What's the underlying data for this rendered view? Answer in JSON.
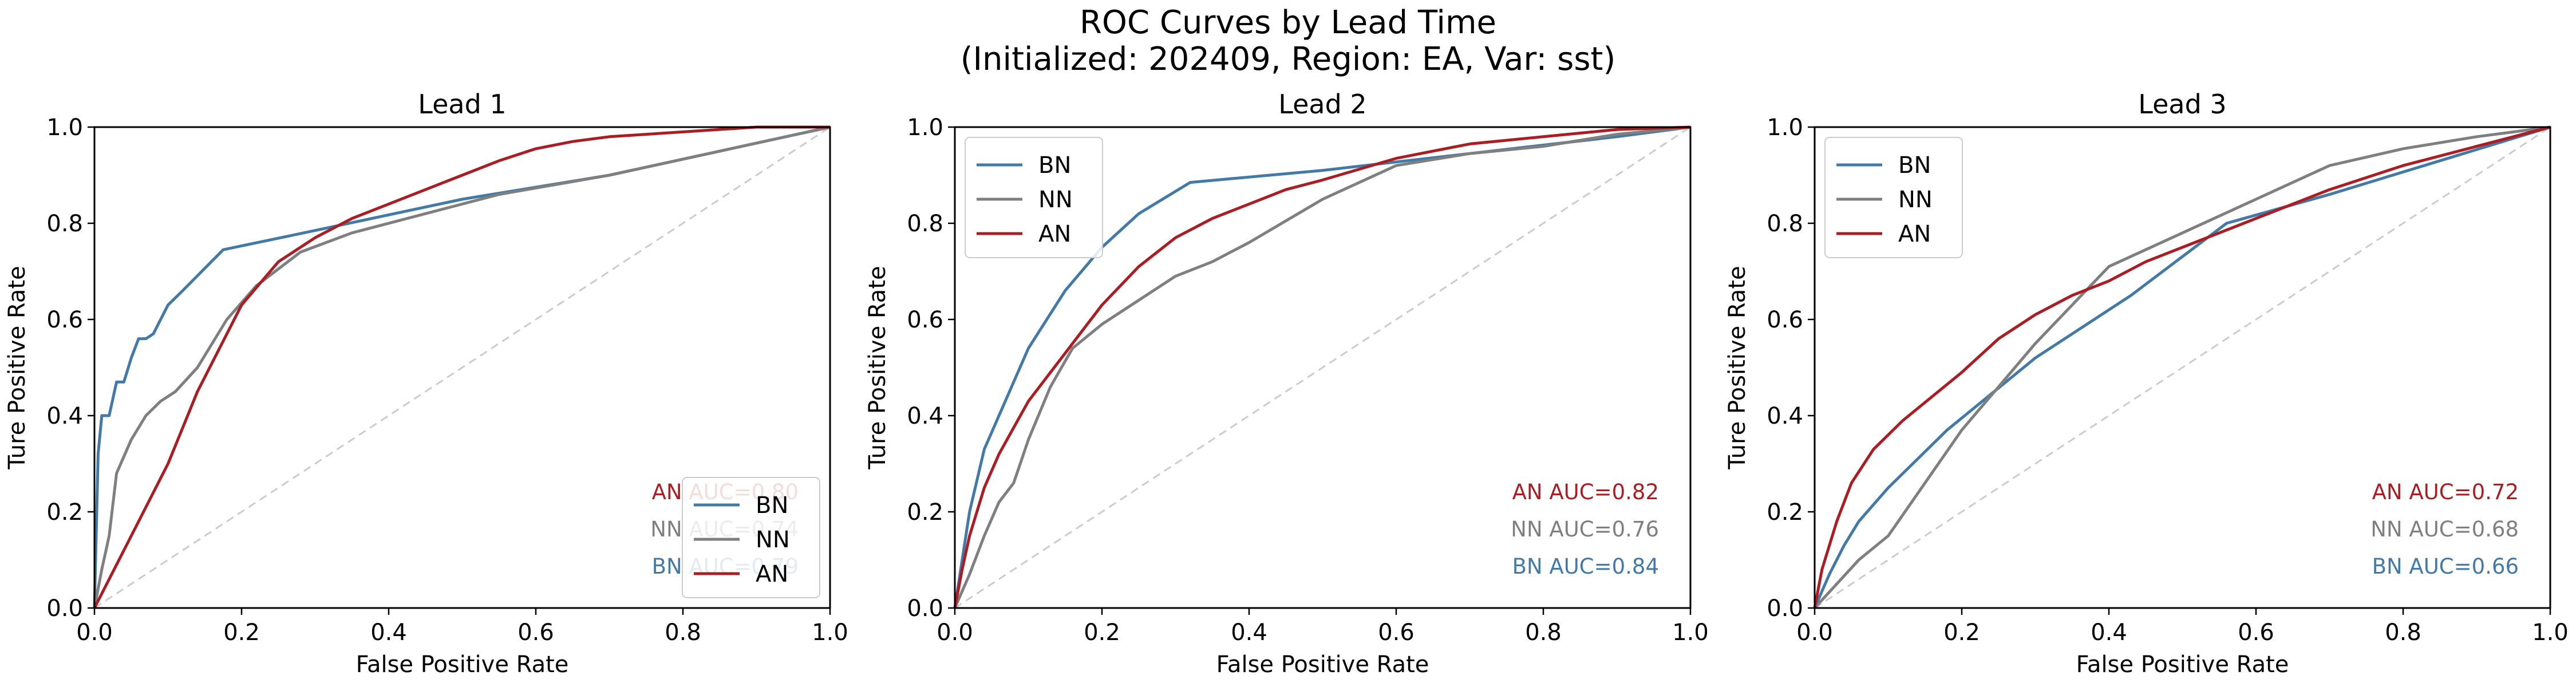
{
  "title_line1": "ROC Curves by Lead Time",
  "title_line2": "(Initialized: 202409, Region: EA, Var: sst)",
  "colors": {
    "BN": "#4279a7",
    "NN": "#7f7f7f",
    "AN": "#aa1e23",
    "diagonal": "#cccccc"
  },
  "chart_data": [
    {
      "type": "line",
      "title": "Lead 1",
      "xlabel": "False Positive Rate",
      "ylabel": "Ture Positive Rate",
      "xlim": [
        0,
        1
      ],
      "ylim": [
        0,
        1
      ],
      "xticks": [
        "0.0",
        "0.2",
        "0.4",
        "0.6",
        "0.8",
        "1.0"
      ],
      "yticks": [
        "0.0",
        "0.2",
        "0.4",
        "0.6",
        "0.8",
        "1.0"
      ],
      "legend": {
        "position": "lower-right",
        "entries": [
          "BN",
          "NN",
          "AN"
        ]
      },
      "annotations": [
        {
          "series": "AN",
          "text": "AN AUC=0.80"
        },
        {
          "series": "NN",
          "text": "NN AUC=0.74"
        },
        {
          "series": "BN",
          "text": "BN AUC=0.79"
        }
      ],
      "series": [
        {
          "name": "BN",
          "x": [
            0,
            0.005,
            0.01,
            0.02,
            0.03,
            0.04,
            0.05,
            0.06,
            0.07,
            0.08,
            0.1,
            0.12,
            0.175,
            0.3,
            0.5,
            0.7,
            1.0
          ],
          "y": [
            0,
            0.32,
            0.4,
            0.4,
            0.47,
            0.47,
            0.52,
            0.56,
            0.56,
            0.57,
            0.63,
            0.66,
            0.745,
            0.785,
            0.85,
            0.9,
            1.0
          ]
        },
        {
          "name": "NN",
          "x": [
            0,
            0.01,
            0.02,
            0.03,
            0.05,
            0.07,
            0.09,
            0.11,
            0.14,
            0.18,
            0.22,
            0.28,
            0.35,
            0.45,
            0.55,
            0.7,
            0.85,
            1.0
          ],
          "y": [
            0,
            0.08,
            0.15,
            0.28,
            0.35,
            0.4,
            0.43,
            0.45,
            0.5,
            0.6,
            0.67,
            0.74,
            0.78,
            0.82,
            0.86,
            0.9,
            0.95,
            1.0
          ]
        },
        {
          "name": "AN",
          "x": [
            0,
            0.05,
            0.1,
            0.14,
            0.2,
            0.25,
            0.3,
            0.35,
            0.4,
            0.45,
            0.5,
            0.55,
            0.6,
            0.65,
            0.7,
            0.8,
            0.9,
            1.0
          ],
          "y": [
            0,
            0.15,
            0.3,
            0.45,
            0.63,
            0.72,
            0.77,
            0.81,
            0.84,
            0.87,
            0.9,
            0.93,
            0.955,
            0.97,
            0.98,
            0.99,
            1.0,
            1.0
          ]
        }
      ]
    },
    {
      "type": "line",
      "title": "Lead 2",
      "xlabel": "False Positive Rate",
      "ylabel": "Ture Positive Rate",
      "xlim": [
        0,
        1
      ],
      "ylim": [
        0,
        1
      ],
      "xticks": [
        "0.0",
        "0.2",
        "0.4",
        "0.6",
        "0.8",
        "1.0"
      ],
      "yticks": [
        "0.0",
        "0.2",
        "0.4",
        "0.6",
        "0.8",
        "1.0"
      ],
      "legend": {
        "position": "upper-left",
        "entries": [
          "BN",
          "NN",
          "AN"
        ]
      },
      "annotations": [
        {
          "series": "AN",
          "text": "AN AUC=0.82"
        },
        {
          "series": "NN",
          "text": "NN AUC=0.76"
        },
        {
          "series": "BN",
          "text": "BN AUC=0.84"
        }
      ],
      "series": [
        {
          "name": "BN",
          "x": [
            0,
            0.01,
            0.02,
            0.04,
            0.06,
            0.1,
            0.15,
            0.2,
            0.25,
            0.32,
            0.5,
            0.7,
            0.9,
            1.0
          ],
          "y": [
            0,
            0.1,
            0.2,
            0.33,
            0.4,
            0.54,
            0.66,
            0.75,
            0.82,
            0.885,
            0.91,
            0.945,
            0.98,
            1.0
          ]
        },
        {
          "name": "NN",
          "x": [
            0,
            0.02,
            0.04,
            0.06,
            0.08,
            0.1,
            0.13,
            0.16,
            0.2,
            0.25,
            0.3,
            0.35,
            0.4,
            0.5,
            0.6,
            0.7,
            0.8,
            0.9,
            1.0
          ],
          "y": [
            0,
            0.07,
            0.15,
            0.22,
            0.26,
            0.35,
            0.46,
            0.54,
            0.59,
            0.64,
            0.69,
            0.72,
            0.76,
            0.85,
            0.92,
            0.945,
            0.96,
            0.985,
            1.0
          ]
        },
        {
          "name": "AN",
          "x": [
            0,
            0.01,
            0.02,
            0.04,
            0.06,
            0.1,
            0.15,
            0.2,
            0.25,
            0.3,
            0.35,
            0.4,
            0.45,
            0.5,
            0.6,
            0.7,
            0.8,
            0.9,
            1.0
          ],
          "y": [
            0,
            0.08,
            0.15,
            0.25,
            0.32,
            0.43,
            0.53,
            0.63,
            0.71,
            0.77,
            0.81,
            0.84,
            0.87,
            0.89,
            0.935,
            0.965,
            0.98,
            0.995,
            1.0
          ]
        }
      ]
    },
    {
      "type": "line",
      "title": "Lead 3",
      "xlabel": "False Positive Rate",
      "ylabel": "Ture Positive Rate",
      "xlim": [
        0,
        1
      ],
      "ylim": [
        0,
        1
      ],
      "xticks": [
        "0.0",
        "0.2",
        "0.4",
        "0.6",
        "0.8",
        "1.0"
      ],
      "yticks": [
        "0.0",
        "0.2",
        "0.4",
        "0.6",
        "0.8",
        "1.0"
      ],
      "legend": {
        "position": "upper-left",
        "entries": [
          "BN",
          "NN",
          "AN"
        ]
      },
      "annotations": [
        {
          "series": "AN",
          "text": "AN AUC=0.72"
        },
        {
          "series": "NN",
          "text": "NN AUC=0.68"
        },
        {
          "series": "BN",
          "text": "BN AUC=0.66"
        }
      ],
      "series": [
        {
          "name": "BN",
          "x": [
            0,
            0.02,
            0.04,
            0.06,
            0.1,
            0.14,
            0.18,
            0.22,
            0.3,
            0.43,
            0.56,
            0.7,
            0.85,
            1.0
          ],
          "y": [
            0,
            0.07,
            0.13,
            0.18,
            0.25,
            0.31,
            0.37,
            0.42,
            0.52,
            0.65,
            0.8,
            0.86,
            0.93,
            1.0
          ]
        },
        {
          "name": "NN",
          "x": [
            0,
            0.03,
            0.06,
            0.1,
            0.15,
            0.2,
            0.25,
            0.3,
            0.35,
            0.4,
            0.5,
            0.6,
            0.7,
            0.8,
            0.9,
            1.0
          ],
          "y": [
            0,
            0.05,
            0.1,
            0.15,
            0.26,
            0.37,
            0.46,
            0.55,
            0.63,
            0.71,
            0.78,
            0.85,
            0.92,
            0.955,
            0.98,
            1.0
          ]
        },
        {
          "name": "AN",
          "x": [
            0,
            0.01,
            0.03,
            0.05,
            0.08,
            0.12,
            0.16,
            0.2,
            0.25,
            0.3,
            0.35,
            0.4,
            0.45,
            0.5,
            0.6,
            0.7,
            0.8,
            0.9,
            1.0
          ],
          "y": [
            0,
            0.08,
            0.18,
            0.26,
            0.33,
            0.39,
            0.44,
            0.49,
            0.56,
            0.61,
            0.65,
            0.68,
            0.72,
            0.75,
            0.81,
            0.87,
            0.92,
            0.96,
            1.0
          ]
        }
      ]
    }
  ]
}
